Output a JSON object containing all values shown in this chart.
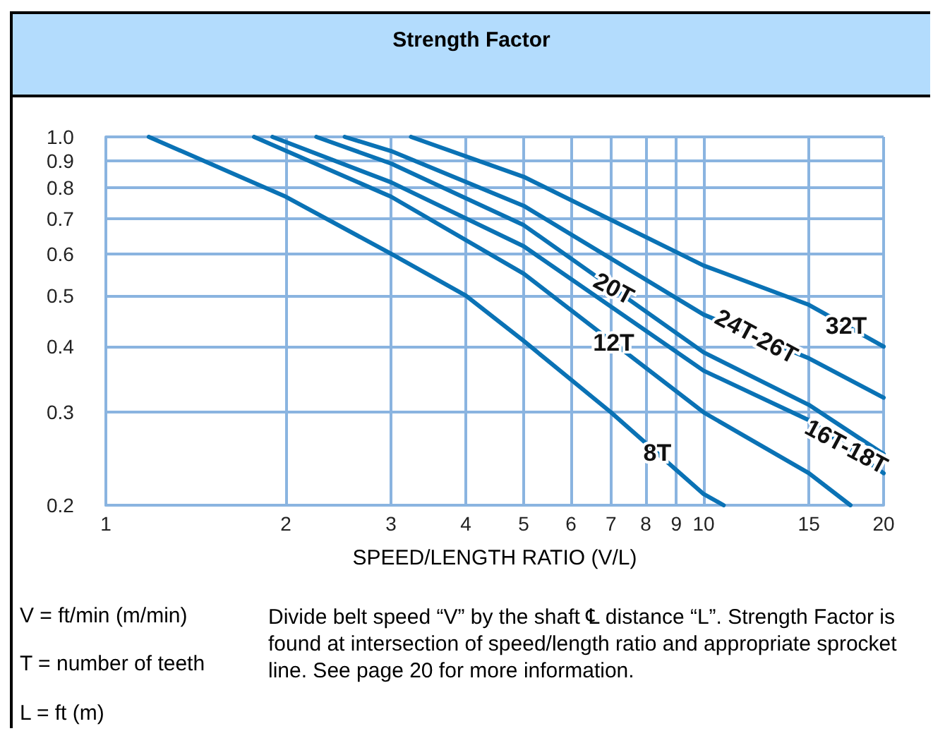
{
  "chart_data": {
    "type": "line",
    "title": "Strength Factor",
    "xlabel": "SPEED/LENGTH RATIO (V/L)",
    "log": "xy",
    "grid": true,
    "legend": false,
    "marker": "none",
    "line_style": "solid",
    "xlim": [
      1,
      20
    ],
    "xticks": [
      1,
      2,
      3,
      4,
      5,
      6,
      7,
      8,
      9,
      10,
      15,
      20
    ],
    "ylim": [
      0.2,
      1
    ],
    "yticks": [
      0.2,
      0.3,
      0.4,
      0.5,
      0.6,
      0.7,
      0.8,
      0.9,
      {
        "value": 1,
        "label": "1.0"
      }
    ],
    "series": [
      {
        "name": "32T",
        "color": "#0a72b5",
        "x": [
          3.24,
          5,
          10,
          15,
          20
        ],
        "values": [
          1,
          0.84,
          0.57,
          0.48,
          0.4
        ]
      },
      {
        "name": "24T-26T",
        "color": "#0a72b5",
        "x": [
          2.51,
          3,
          5,
          10,
          15,
          20
        ],
        "values": [
          1,
          0.94,
          0.74,
          0.46,
          0.38,
          0.32
        ]
      },
      {
        "name": "20T",
        "color": "#0a72b5",
        "x": [
          2.25,
          3,
          5,
          10,
          15,
          20
        ],
        "values": [
          1,
          0.89,
          0.68,
          0.39,
          0.31,
          0.25
        ]
      },
      {
        "name": "16T-18T",
        "color": "#0a72b5",
        "x": [
          1.9,
          3,
          5,
          10,
          15,
          20
        ],
        "values": [
          1,
          0.82,
          0.62,
          0.36,
          0.29,
          0.23
        ]
      },
      {
        "name": "12T",
        "color": "#0a72b5",
        "x": [
          1.77,
          3,
          5,
          10,
          15,
          17.6
        ],
        "values": [
          1,
          0.77,
          0.55,
          0.3,
          0.23,
          0.2
        ]
      },
      {
        "name": "8T",
        "color": "#0a72b5",
        "x": [
          1.18,
          2,
          3,
          4,
          5,
          7,
          10,
          10.8
        ],
        "values": [
          1,
          0.77,
          0.6,
          0.5,
          0.41,
          0.3,
          0.21,
          0.2
        ]
      }
    ],
    "annotations": [
      "V = ft/min (m/min)",
      "T = number of teeth",
      "L = ft (m)",
      "Divide belt speed “V” by the shaft ℄ distance “L”. Strength Factor is found at intersection of speed/length ratio and appropriate sprocket line. See page 20 for more information."
    ]
  }
}
